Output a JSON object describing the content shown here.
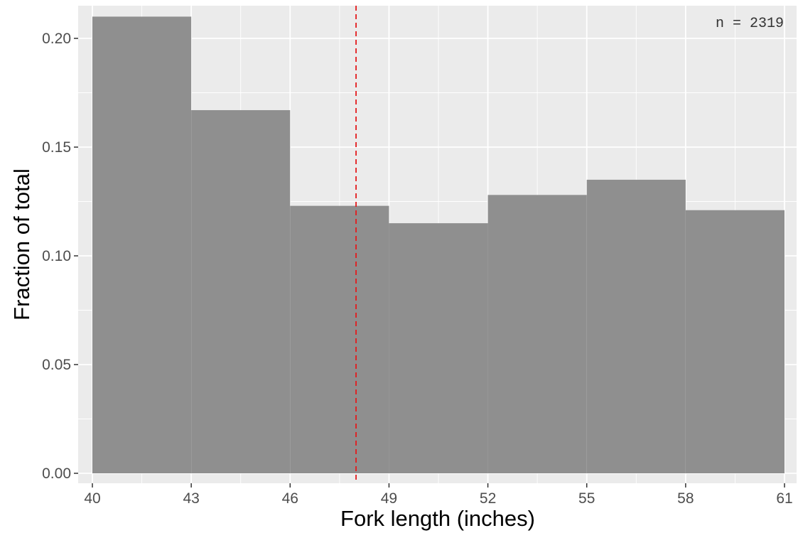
{
  "chart_data": {
    "type": "bar",
    "subtype": "histogram",
    "bin_edges": [
      40,
      43,
      46,
      49,
      52,
      55,
      58,
      61
    ],
    "values": [
      0.21,
      0.167,
      0.123,
      0.115,
      0.128,
      0.135,
      0.121
    ],
    "xlabel": "Fork length (inches)",
    "ylabel": "Fraction of total",
    "xlim": [
      40,
      61
    ],
    "ylim": [
      0,
      0.21
    ],
    "x_ticks": [
      40,
      43,
      46,
      49,
      52,
      55,
      58,
      61
    ],
    "x_tick_labels": [
      "40",
      "43",
      "46",
      "49",
      "52",
      "55",
      "58",
      "61"
    ],
    "y_ticks": [
      0,
      0.05,
      0.1,
      0.15,
      0.2
    ],
    "y_tick_labels": [
      "0.00",
      "0.05",
      "0.10",
      "0.15",
      "0.20"
    ],
    "reference_line": {
      "x": 48,
      "color": "#e41a1c",
      "style": "dashed"
    },
    "annotation": {
      "text": "n = 2319",
      "placement": "top-right"
    },
    "grid": true,
    "colors": {
      "bar": "#8f8f8f",
      "panel": "#ebebeb",
      "gridline": "#ffffff"
    }
  }
}
